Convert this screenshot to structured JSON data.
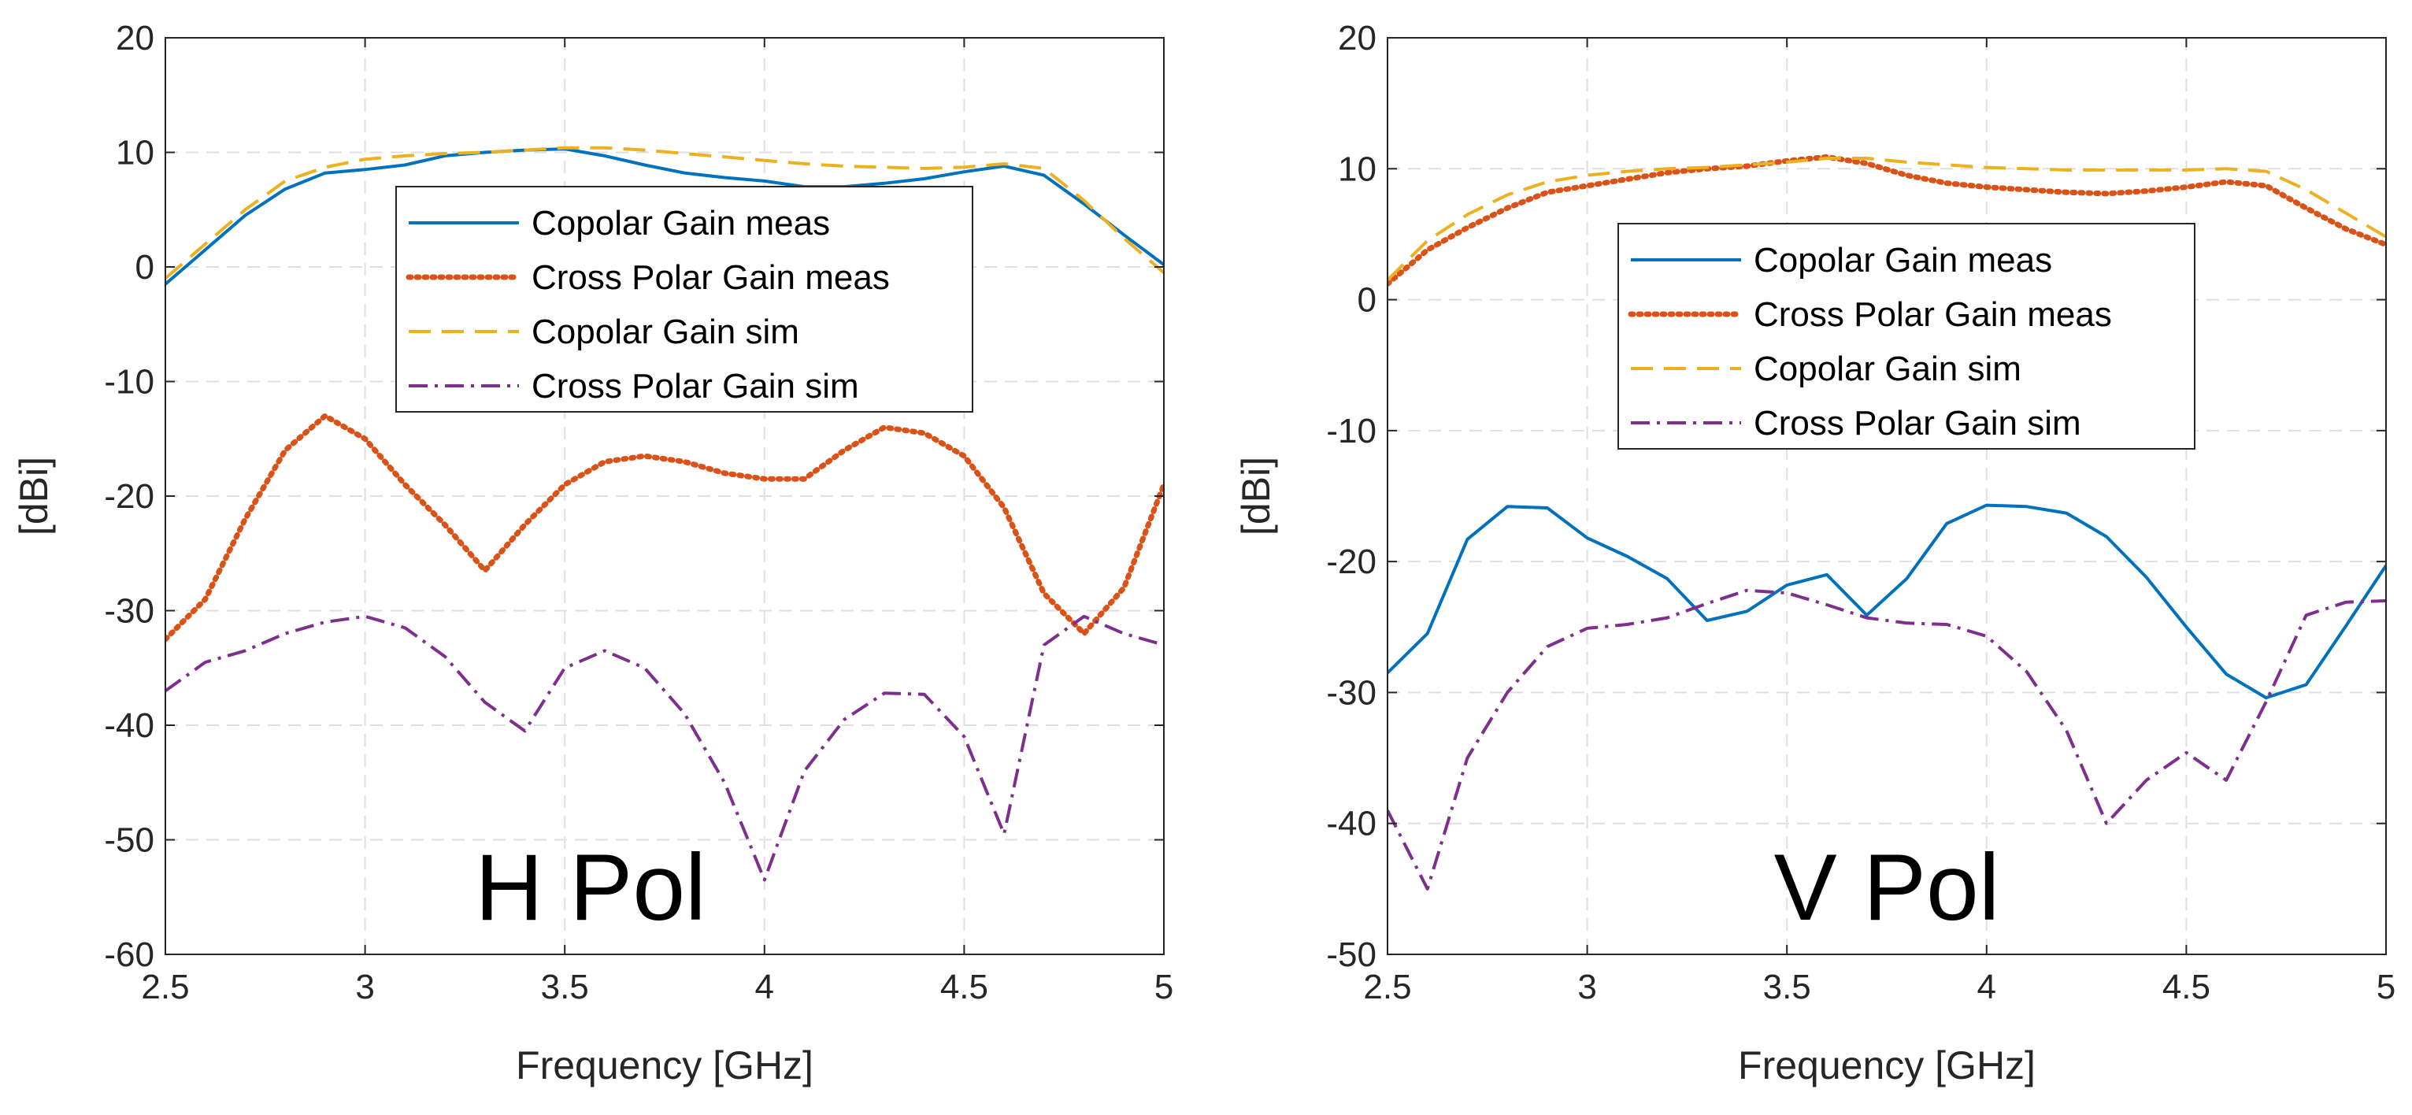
{
  "charts": [
    {
      "type": "line",
      "title": "H Pol",
      "xlabel": "Frequency [GHz]",
      "ylabel": "[dBi]",
      "xlim": [
        2.5,
        5
      ],
      "ylim": [
        -60,
        20
      ],
      "xticks": [
        2.5,
        3,
        3.5,
        4,
        4.5,
        5
      ],
      "xtick_labels": [
        "2.5",
        "3",
        "3.5",
        "4",
        "4.5",
        "5"
      ],
      "yticks": [
        -60,
        -50,
        -40,
        -30,
        -20,
        -10,
        0,
        10,
        20
      ],
      "ytick_labels": [
        "-60",
        "-50",
        "-40",
        "-30",
        "-20",
        "-10",
        "0",
        "10",
        "20"
      ],
      "grid": true,
      "legend_position": "upper-center",
      "series": [
        {
          "name": "Copolar Gain meas",
          "style": "solid",
          "color": "#0072BD",
          "x": [
            2.5,
            2.6,
            2.7,
            2.8,
            2.9,
            3.0,
            3.1,
            3.2,
            3.3,
            3.4,
            3.5,
            3.6,
            3.7,
            3.8,
            3.9,
            4.0,
            4.1,
            4.2,
            4.3,
            4.4,
            4.5,
            4.6,
            4.7,
            4.8,
            4.9,
            5.0
          ],
          "y": [
            -1.5,
            1.5,
            4.5,
            6.8,
            8.2,
            8.5,
            8.9,
            9.7,
            10.0,
            10.2,
            10.3,
            9.7,
            8.9,
            8.2,
            7.8,
            7.5,
            7.0,
            7.0,
            7.3,
            7.7,
            8.3,
            8.8,
            8.0,
            5.5,
            2.8,
            0.2
          ]
        },
        {
          "name": "Cross Polar Gain meas",
          "style": "dotted",
          "color": "#D95319",
          "x": [
            2.5,
            2.6,
            2.7,
            2.8,
            2.9,
            3.0,
            3.1,
            3.2,
            3.3,
            3.4,
            3.5,
            3.6,
            3.7,
            3.8,
            3.9,
            4.0,
            4.1,
            4.2,
            4.3,
            4.4,
            4.5,
            4.6,
            4.7,
            4.8,
            4.9,
            5.0
          ],
          "y": [
            -32.5,
            -29,
            -22,
            -16,
            -13,
            -15,
            -19,
            -22.5,
            -26.5,
            -22.5,
            -19,
            -17,
            -16.5,
            -17,
            -18,
            -18.5,
            -18.5,
            -16,
            -14,
            -14.5,
            -16.5,
            -21,
            -28.5,
            -32,
            -28,
            -19
          ]
        },
        {
          "name": "Copolar Gain sim",
          "style": "dashed",
          "color": "#EDB120",
          "x": [
            2.5,
            2.6,
            2.7,
            2.8,
            2.9,
            3.0,
            3.1,
            3.2,
            3.3,
            3.4,
            3.5,
            3.6,
            3.7,
            3.8,
            3.9,
            4.0,
            4.1,
            4.2,
            4.3,
            4.4,
            4.5,
            4.6,
            4.7,
            4.8,
            4.9,
            5.0
          ],
          "y": [
            -1.0,
            2.0,
            5.0,
            7.5,
            8.7,
            9.4,
            9.7,
            9.9,
            10.0,
            10.2,
            10.4,
            10.4,
            10.2,
            9.9,
            9.6,
            9.3,
            9.0,
            8.8,
            8.7,
            8.6,
            8.7,
            9.0,
            8.6,
            5.8,
            2.5,
            -0.5
          ]
        },
        {
          "name": "Cross Polar Gain sim",
          "style": "dashdot",
          "color": "#7E2F8E",
          "x": [
            2.5,
            2.6,
            2.7,
            2.8,
            2.9,
            3.0,
            3.1,
            3.2,
            3.3,
            3.4,
            3.5,
            3.6,
            3.7,
            3.8,
            3.9,
            4.0,
            4.1,
            4.2,
            4.3,
            4.4,
            4.5,
            4.6,
            4.7,
            4.8,
            4.9,
            5.0
          ],
          "y": [
            -37,
            -34.5,
            -33.5,
            -32,
            -31,
            -30.5,
            -31.5,
            -34,
            -38,
            -40.5,
            -35,
            -33.5,
            -35,
            -39,
            -45,
            -53.5,
            -44,
            -39.5,
            -37.2,
            -37.3,
            -41,
            -49.5,
            -33,
            -30.5,
            -32,
            -33
          ]
        }
      ]
    },
    {
      "type": "line",
      "title": "V Pol",
      "xlabel": "Frequency [GHz]",
      "ylabel": "[dBi]",
      "xlim": [
        2.5,
        5
      ],
      "ylim": [
        -50,
        20
      ],
      "xticks": [
        2.5,
        3,
        3.5,
        4,
        4.5,
        5
      ],
      "xtick_labels": [
        "2.5",
        "3",
        "3.5",
        "4",
        "4.5",
        "5"
      ],
      "yticks": [
        -50,
        -40,
        -30,
        -20,
        -10,
        0,
        10,
        20
      ],
      "ytick_labels": [
        "-50",
        "-40",
        "-30",
        "-20",
        "-10",
        "0",
        "10",
        "20"
      ],
      "grid": true,
      "legend_position": "upper-center",
      "series": [
        {
          "name": "Copolar Gain meas",
          "style": "solid",
          "color": "#0072BD",
          "x": [
            2.5,
            2.6,
            2.7,
            2.8,
            2.9,
            3.0,
            3.1,
            3.2,
            3.3,
            3.4,
            3.5,
            3.6,
            3.7,
            3.8,
            3.9,
            4.0,
            4.1,
            4.2,
            4.3,
            4.4,
            4.5,
            4.6,
            4.7,
            4.8,
            4.9,
            5.0
          ],
          "y": [
            -28.5,
            -25.5,
            -18.3,
            -15.8,
            -15.9,
            -18.2,
            -19.6,
            -21.3,
            -24.5,
            -23.8,
            -21.8,
            -21.0,
            -24.1,
            -21.3,
            -17.1,
            -15.7,
            -15.8,
            -16.3,
            -18.1,
            -21.2,
            -25.0,
            -28.6,
            -30.4,
            -29.4,
            -24.9,
            -20.3
          ]
        },
        {
          "name": "Cross Polar Gain meas",
          "style": "dotted",
          "color": "#D95319",
          "x": [
            2.5,
            2.6,
            2.7,
            2.8,
            2.9,
            3.0,
            3.1,
            3.2,
            3.3,
            3.4,
            3.5,
            3.6,
            3.7,
            3.8,
            3.9,
            4.0,
            4.1,
            4.2,
            4.3,
            4.4,
            4.5,
            4.6,
            4.7,
            4.8,
            4.9,
            5.0
          ],
          "y": [
            1.2,
            3.8,
            5.5,
            7.0,
            8.2,
            8.7,
            9.2,
            9.7,
            10.0,
            10.2,
            10.6,
            10.9,
            10.4,
            9.5,
            8.9,
            8.6,
            8.4,
            8.2,
            8.1,
            8.3,
            8.6,
            9.0,
            8.7,
            7.0,
            5.4,
            4.2
          ]
        },
        {
          "name": "Copolar Gain sim",
          "style": "dashed",
          "color": "#EDB120",
          "x": [
            2.5,
            2.6,
            2.7,
            2.8,
            2.9,
            3.0,
            3.1,
            3.2,
            3.3,
            3.4,
            3.5,
            3.6,
            3.7,
            3.8,
            3.9,
            4.0,
            4.1,
            4.2,
            4.3,
            4.4,
            4.5,
            4.6,
            4.7,
            4.8,
            4.9,
            5.0
          ],
          "y": [
            1.5,
            4.5,
            6.5,
            8.0,
            9.0,
            9.5,
            9.8,
            10.0,
            10.1,
            10.3,
            10.5,
            10.8,
            10.8,
            10.5,
            10.3,
            10.1,
            10.0,
            9.9,
            9.9,
            9.9,
            9.9,
            10.0,
            9.8,
            8.4,
            6.6,
            4.8
          ]
        },
        {
          "name": "Cross Polar Gain sim",
          "style": "dashdot",
          "color": "#7E2F8E",
          "x": [
            2.5,
            2.6,
            2.7,
            2.8,
            2.9,
            3.0,
            3.1,
            3.2,
            3.3,
            3.4,
            3.5,
            3.6,
            3.7,
            3.8,
            3.9,
            4.0,
            4.1,
            4.2,
            4.3,
            4.4,
            4.5,
            4.6,
            4.7,
            4.8,
            4.9,
            5.0
          ],
          "y": [
            -39,
            -45,
            -35,
            -30,
            -26.5,
            -25.1,
            -24.8,
            -24.3,
            -23.2,
            -22.2,
            -22.4,
            -23.3,
            -24.3,
            -24.7,
            -24.8,
            -25.7,
            -28.4,
            -32.9,
            -40.0,
            -36.7,
            -34.6,
            -36.7,
            -30.7,
            -24.1,
            -23.1,
            -23.0
          ]
        }
      ]
    }
  ]
}
